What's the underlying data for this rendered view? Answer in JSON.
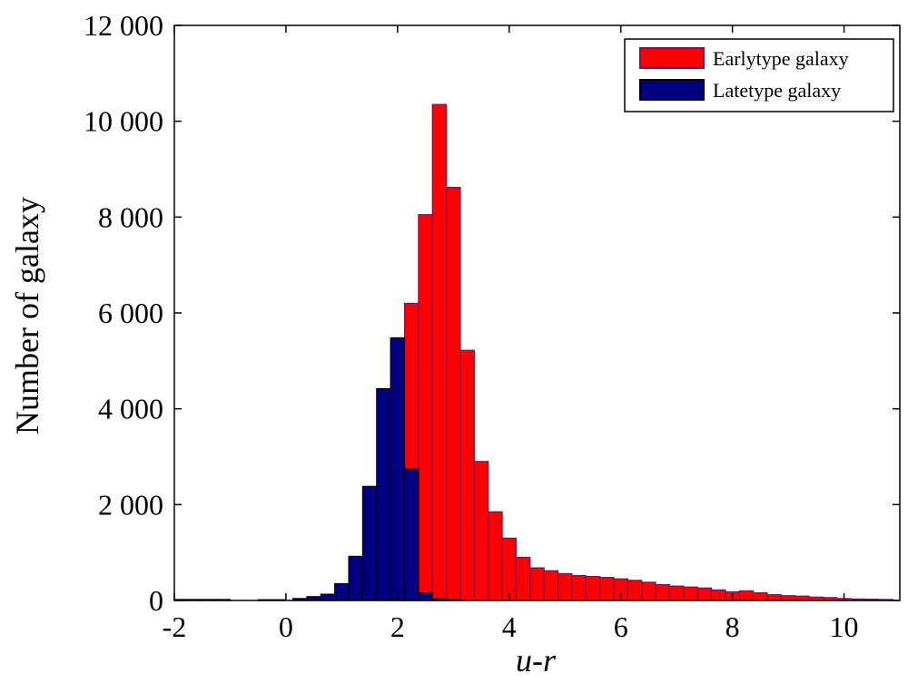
{
  "chart_data": {
    "type": "bar",
    "xlabel": "u-r",
    "ylabel": "Number of galaxy",
    "xlim": [
      -2,
      11
    ],
    "ylim": [
      0,
      12000
    ],
    "grid": false,
    "legend_position": "top-right",
    "xticks": [
      -2,
      0,
      2,
      4,
      6,
      8,
      10
    ],
    "xtick_labels": [
      "-2",
      "0",
      "2",
      "4",
      "6",
      "8",
      "10"
    ],
    "yticks": [
      0,
      2000,
      4000,
      6000,
      8000,
      10000,
      12000
    ],
    "ytick_labels": [
      "0",
      "2 000",
      "4 000",
      "6 000",
      "8 000",
      "10 000",
      "12 000"
    ],
    "bin_width": 0.25,
    "series": [
      {
        "name": "Earlytype galaxy",
        "color": "#ff0000",
        "edge_color": "#6a1a5a",
        "bins": [
          {
            "x0": 2.125,
            "value": 120
          },
          {
            "x0": 2.125,
            "value": 6200
          },
          {
            "x0": 2.375,
            "value": 8050
          },
          {
            "x0": 2.625,
            "value": 10350
          },
          {
            "x0": 2.875,
            "value": 8620
          },
          {
            "x0": 3.125,
            "value": 5220
          },
          {
            "x0": 3.375,
            "value": 2900
          },
          {
            "x0": 3.625,
            "value": 1850
          },
          {
            "x0": 3.875,
            "value": 1300
          },
          {
            "x0": 4.125,
            "value": 900
          },
          {
            "x0": 4.375,
            "value": 680
          },
          {
            "x0": 4.625,
            "value": 620
          },
          {
            "x0": 4.875,
            "value": 560
          },
          {
            "x0": 5.125,
            "value": 520
          },
          {
            "x0": 5.375,
            "value": 500
          },
          {
            "x0": 5.625,
            "value": 480
          },
          {
            "x0": 5.875,
            "value": 450
          },
          {
            "x0": 6.125,
            "value": 420
          },
          {
            "x0": 6.375,
            "value": 380
          },
          {
            "x0": 6.625,
            "value": 330
          },
          {
            "x0": 6.875,
            "value": 300
          },
          {
            "x0": 7.125,
            "value": 280
          },
          {
            "x0": 7.375,
            "value": 260
          },
          {
            "x0": 7.625,
            "value": 220
          },
          {
            "x0": 7.875,
            "value": 180
          },
          {
            "x0": 8.125,
            "value": 200
          },
          {
            "x0": 8.375,
            "value": 160
          },
          {
            "x0": 8.625,
            "value": 120
          },
          {
            "x0": 8.875,
            "value": 100
          },
          {
            "x0": 9.125,
            "value": 90
          },
          {
            "x0": 9.375,
            "value": 70
          },
          {
            "x0": 9.625,
            "value": 60
          },
          {
            "x0": 9.875,
            "value": 40
          },
          {
            "x0": 10.125,
            "value": 30
          },
          {
            "x0": 10.375,
            "value": 25
          },
          {
            "x0": 10.625,
            "value": 20
          }
        ]
      },
      {
        "name": "Latetype galaxy",
        "color": "#000080",
        "edge_color": "#000000",
        "bins": [
          {
            "x0": -2.0,
            "value": 20
          },
          {
            "x0": -1.75,
            "value": 20
          },
          {
            "x0": -1.5,
            "value": 20
          },
          {
            "x0": -1.25,
            "value": 20
          },
          {
            "x0": -0.5,
            "value": 15
          },
          {
            "x0": -0.25,
            "value": 15
          },
          {
            "x0": 0.125,
            "value": 40
          },
          {
            "x0": 0.375,
            "value": 80
          },
          {
            "x0": 0.625,
            "value": 130
          },
          {
            "x0": 0.875,
            "value": 350
          },
          {
            "x0": 1.125,
            "value": 920
          },
          {
            "x0": 1.375,
            "value": 2380
          },
          {
            "x0": 1.625,
            "value": 4420
          },
          {
            "x0": 1.875,
            "value": 5480
          },
          {
            "x0": 2.125,
            "value": 2740
          },
          {
            "x0": 2.375,
            "value": 160
          },
          {
            "x0": 2.625,
            "value": 30
          },
          {
            "x0": 2.875,
            "value": 15
          }
        ]
      }
    ]
  }
}
